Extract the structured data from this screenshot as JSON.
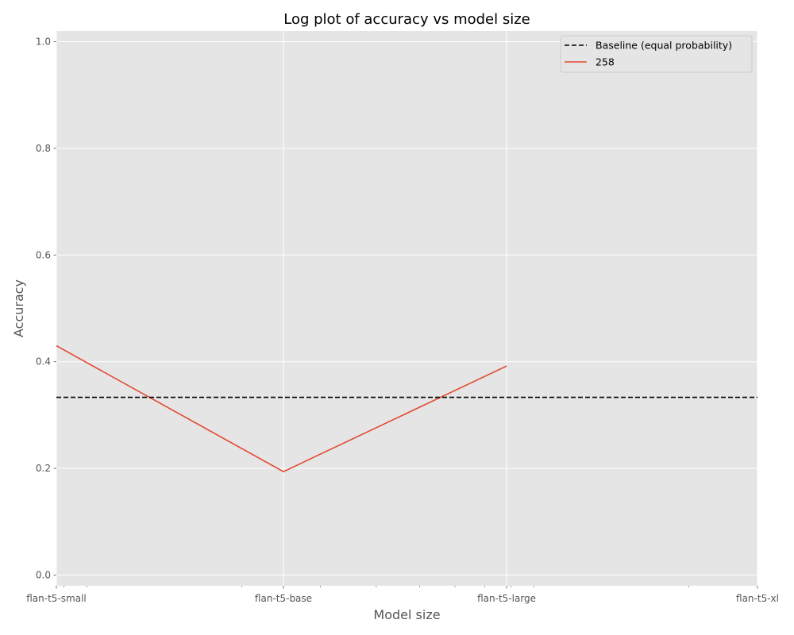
{
  "chart_data": {
    "type": "line",
    "title": "Log plot of accuracy vs model size",
    "xlabel": "Model size",
    "ylabel": "Accuracy",
    "x_scale": "log",
    "x": [
      0.077,
      0.248,
      0.783,
      2.85
    ],
    "x_tick_labels": [
      "flan-t5-small",
      "flan-t5-base",
      "flan-t5-large",
      "flan-t5-xl"
    ],
    "xlim": [
      0.077,
      2.85
    ],
    "ylim": [
      -0.02,
      1.02
    ],
    "y_ticks": [
      0.0,
      0.2,
      0.4,
      0.6,
      0.8,
      1.0
    ],
    "y_tick_labels": [
      "0.0",
      "0.2",
      "0.4",
      "0.6",
      "0.8",
      "1.0"
    ],
    "grid": true,
    "legend_position": "top-right",
    "baseline": {
      "name": "Baseline (equal probability)",
      "value": 0.3333,
      "color": "#000000",
      "style": "dashed"
    },
    "series": [
      {
        "name": "258",
        "color": "#E24A33",
        "x": [
          0.077,
          0.248,
          0.783
        ],
        "values": [
          0.43,
          0.194,
          0.392
        ]
      }
    ]
  }
}
